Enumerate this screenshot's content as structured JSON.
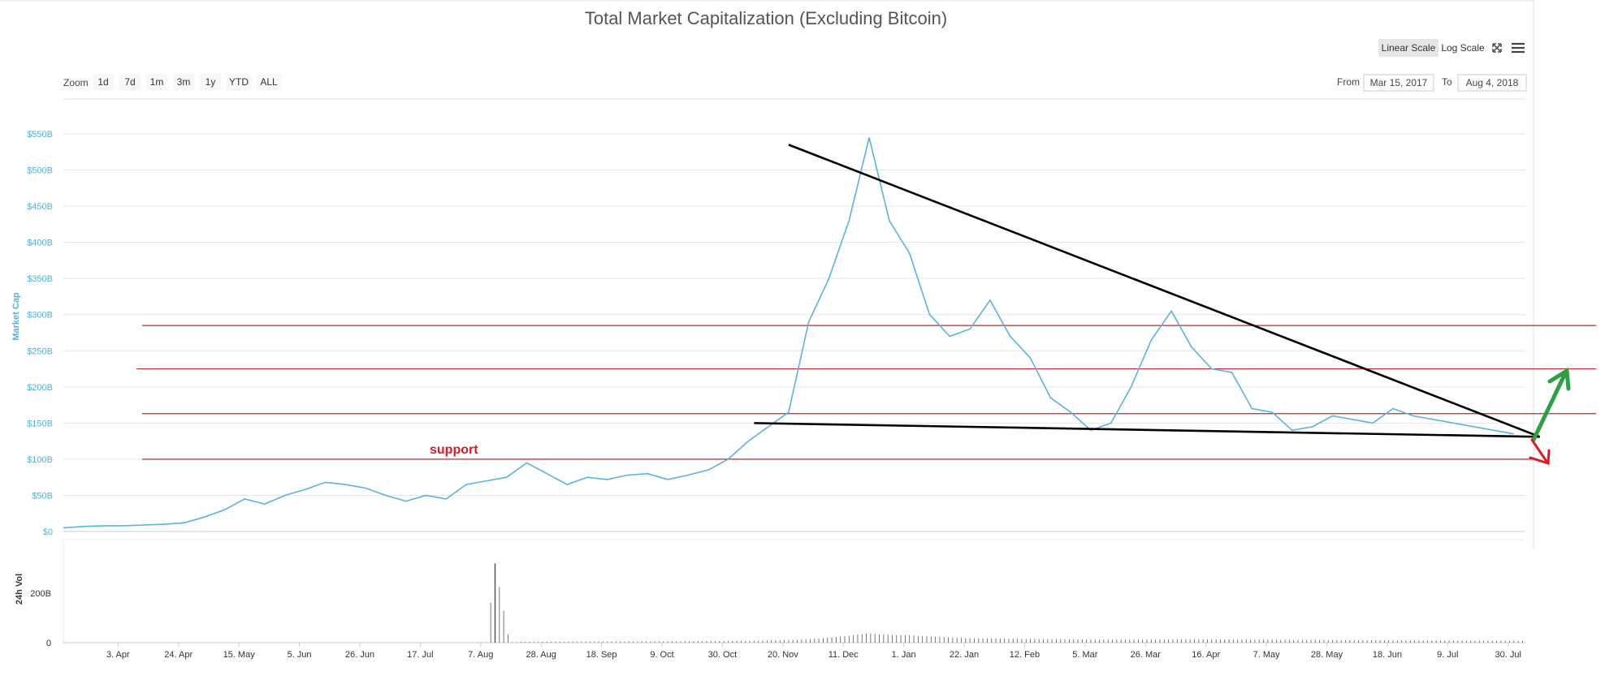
{
  "toolbar": {
    "zoom_label": "Zoom",
    "zoom_buttons": [
      "1d",
      "7d",
      "1m",
      "3m",
      "1y",
      "YTD",
      "ALL"
    ],
    "linear_scale": "Linear Scale",
    "log_scale": "Log Scale",
    "from_label": "From",
    "from_value": "Mar 15, 2017",
    "to_label": "To",
    "to_value": "Aug 4, 2018"
  },
  "colors": {
    "line": "#5ab4da",
    "trendline": "#000000",
    "level": "#c0282c",
    "up_arrow": "#2ca043",
    "down_arrow": "#e11b24",
    "volume": "#555555"
  },
  "chart_data": {
    "type": "line",
    "title": "Total Market Capitalization (Excluding Bitcoin)",
    "ylabel": "Market Cap",
    "y2label": "24h Vol",
    "ylim": [
      0,
      550
    ],
    "yunit": "B",
    "yticks": [
      "$0",
      "$50B",
      "$100B",
      "$150B",
      "$200B",
      "$250B",
      "$300B",
      "$350B",
      "$400B",
      "$450B",
      "$500B",
      "$550B"
    ],
    "xticks": [
      "3. Apr",
      "24. Apr",
      "15. May",
      "5. Jun",
      "26. Jun",
      "17. Jul",
      "7. Aug",
      "28. Aug",
      "18. Sep",
      "9. Oct",
      "30. Oct",
      "20. Nov",
      "11. Dec",
      "1. Jan",
      "22. Jan",
      "12. Feb",
      "5. Mar",
      "26. Mar",
      "16. Apr",
      "7. May",
      "28. May",
      "18. Jun",
      "9. Jul",
      "30. Jul"
    ],
    "vol_ticks": [
      "0",
      "200B"
    ],
    "series": [
      {
        "name": "Market Cap",
        "x": [
          0,
          7,
          14,
          21,
          28,
          35,
          42,
          49,
          56,
          63,
          70,
          77,
          84,
          91,
          98,
          105,
          112,
          119,
          126,
          133,
          140,
          147,
          154,
          161,
          168,
          175,
          182,
          189,
          196,
          203,
          210,
          217,
          224,
          231,
          238,
          245,
          252,
          259,
          266,
          273,
          280,
          287,
          294,
          301,
          308,
          315,
          322,
          329,
          336,
          343,
          350,
          357,
          364,
          371,
          378,
          385,
          392,
          399,
          406,
          413,
          420,
          427,
          434,
          441,
          448,
          455,
          462,
          469,
          476,
          490,
          504
        ],
        "values": [
          5,
          7,
          8,
          8,
          9,
          10,
          12,
          20,
          30,
          45,
          38,
          50,
          58,
          68,
          65,
          60,
          50,
          42,
          50,
          45,
          65,
          70,
          75,
          95,
          80,
          65,
          75,
          72,
          78,
          80,
          72,
          78,
          85,
          100,
          125,
          145,
          165,
          290,
          350,
          430,
          545,
          430,
          385,
          300,
          270,
          280,
          320,
          270,
          240,
          185,
          165,
          140,
          150,
          200,
          265,
          305,
          255,
          225,
          220,
          170,
          165,
          140,
          145,
          160,
          155,
          150,
          170,
          160,
          155,
          145,
          135
        ]
      },
      {
        "name": "24h Vol",
        "x": [
          0,
          140,
          147,
          150,
          155,
          160,
          175,
          210,
          240,
          255,
          266,
          273,
          280,
          287,
          294,
          301,
          315,
          336,
          364,
          392,
          420,
          448,
          476,
          504
        ],
        "values": [
          0,
          0,
          2,
          320,
          2,
          3,
          4,
          5,
          8,
          12,
          20,
          28,
          38,
          32,
          30,
          25,
          18,
          15,
          12,
          14,
          12,
          10,
          9,
          8
        ]
      }
    ],
    "annotations": [
      {
        "type": "level",
        "value": 285
      },
      {
        "type": "level",
        "value": 225
      },
      {
        "type": "level",
        "value": 163
      },
      {
        "type": "level",
        "value": 100
      },
      {
        "type": "trendline",
        "from": [
          252,
          535
        ],
        "to": [
          513,
          131
        ]
      },
      {
        "type": "trendline",
        "from": [
          240,
          150
        ],
        "to": [
          513,
          131
        ]
      },
      {
        "type": "text",
        "text": "support"
      }
    ]
  }
}
